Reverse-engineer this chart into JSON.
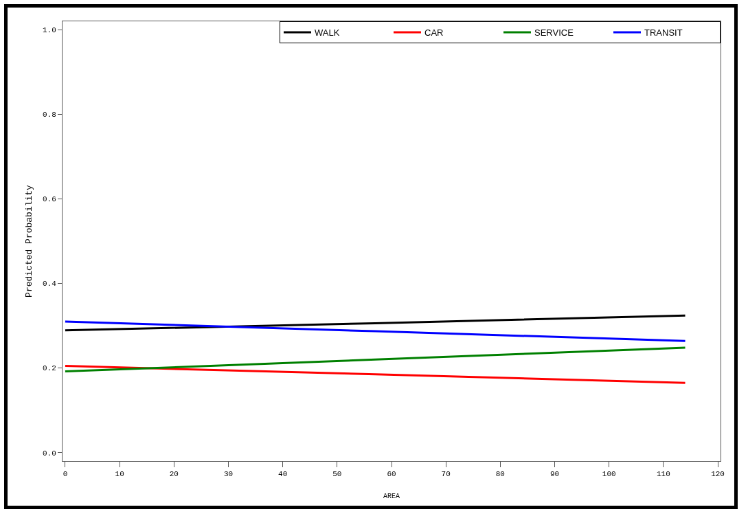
{
  "chart_data": {
    "type": "line",
    "xlabel": "AREA",
    "ylabel": "Predicted Probability",
    "x": [
      0,
      57,
      114
    ],
    "series": [
      {
        "name": "WALK",
        "color": "#000000",
        "values": [
          0.289,
          0.306,
          0.324
        ]
      },
      {
        "name": "CAR",
        "color": "#ff0000",
        "values": [
          0.205,
          0.185,
          0.165
        ]
      },
      {
        "name": "SERVICE",
        "color": "#008000",
        "values": [
          0.192,
          0.22,
          0.248
        ]
      },
      {
        "name": "TRANSIT",
        "color": "#0000ff",
        "values": [
          0.31,
          0.287,
          0.264
        ]
      }
    ],
    "xlim": [
      -0.5,
      120.5
    ],
    "xticks": [
      0,
      10,
      20,
      30,
      40,
      50,
      60,
      70,
      80,
      90,
      100,
      110,
      120
    ],
    "ylim": [
      -0.02,
      1.02
    ],
    "yticks": [
      {
        "value": 0,
        "label": "0.0"
      },
      0.2,
      0.4,
      0.6,
      0.8,
      {
        "value": 1,
        "label": "1.0"
      }
    ],
    "grid": false,
    "legend": "top right",
    "marker": "none",
    "line_style": "solid"
  }
}
